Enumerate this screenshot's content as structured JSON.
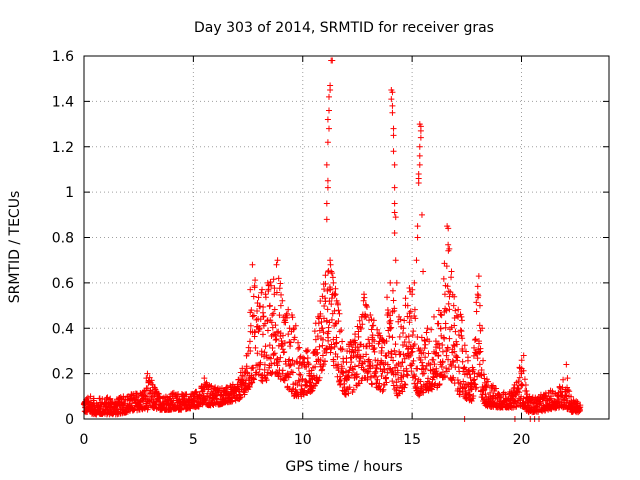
{
  "chart_data": {
    "type": "scatter",
    "title": "Day 303 of 2014, SRMTID for receiver gras",
    "xlabel": "GPS time / hours",
    "ylabel": "SRMTID / TECUs",
    "xlim": [
      0,
      24
    ],
    "ylim": [
      0,
      1.6
    ],
    "grid": true,
    "marker": "+",
    "color": "#ff0000",
    "xticks": [
      0,
      5,
      10,
      15,
      20
    ],
    "xtick_labels": [
      "0",
      "5",
      "10",
      "15",
      "20"
    ],
    "yticks": [
      0,
      0.2,
      0.4,
      0.6,
      0.8,
      1.0,
      1.2,
      1.4,
      1.6
    ],
    "ytick_labels": [
      "0",
      "0.2",
      "0.4",
      "0.6",
      "0.8",
      "1",
      "1.2",
      "1.4",
      "1.6"
    ],
    "envelope": {
      "x": [
        0,
        0.5,
        1,
        1.5,
        2,
        2.5,
        2.9,
        3,
        3.5,
        4,
        4.5,
        5,
        5.5,
        6,
        6.5,
        7,
        7.5,
        7.7,
        7.8,
        8.2,
        8.5,
        8.8,
        9.2,
        9.6,
        10.0,
        10.4,
        10.8,
        11.0,
        11.2,
        11.5,
        11.9,
        12.3,
        12.8,
        13.2,
        13.7,
        14.0,
        14.3,
        14.7,
        15.0,
        15.3,
        15.7,
        16.2,
        16.6,
        17.0,
        17.3,
        17.7,
        18.0,
        18.3,
        18.7,
        19.2,
        19.6,
        20.0,
        20.3,
        20.7,
        21.2,
        21.7,
        22.0,
        22.3,
        22.7
      ],
      "upper": [
        0.1,
        0.09,
        0.1,
        0.09,
        0.11,
        0.12,
        0.15,
        0.19,
        0.1,
        0.12,
        0.11,
        0.12,
        0.16,
        0.15,
        0.14,
        0.16,
        0.3,
        0.5,
        0.66,
        0.58,
        0.62,
        0.68,
        0.52,
        0.45,
        0.3,
        0.32,
        0.55,
        0.65,
        0.72,
        0.6,
        0.32,
        0.35,
        0.55,
        0.45,
        0.35,
        0.7,
        0.42,
        0.55,
        0.62,
        0.35,
        0.4,
        0.45,
        0.85,
        0.5,
        0.45,
        0.18,
        0.6,
        0.2,
        0.15,
        0.12,
        0.12,
        0.28,
        0.1,
        0.1,
        0.12,
        0.14,
        0.2,
        0.09,
        0.07
      ],
      "lower": [
        0.03,
        0.02,
        0.02,
        0.02,
        0.03,
        0.04,
        0.04,
        0.05,
        0.04,
        0.04,
        0.04,
        0.05,
        0.06,
        0.06,
        0.07,
        0.08,
        0.12,
        0.15,
        0.18,
        0.16,
        0.18,
        0.2,
        0.15,
        0.1,
        0.1,
        0.12,
        0.18,
        0.25,
        0.32,
        0.2,
        0.1,
        0.12,
        0.18,
        0.15,
        0.12,
        0.2,
        0.1,
        0.12,
        0.18,
        0.1,
        0.12,
        0.14,
        0.2,
        0.12,
        0.1,
        0.07,
        0.15,
        0.06,
        0.05,
        0.05,
        0.05,
        0.06,
        0.03,
        0.03,
        0.04,
        0.05,
        0.05,
        0.03,
        0.03
      ]
    },
    "points": [
      [
        0.05,
        0.05
      ],
      [
        0.15,
        0.08
      ],
      [
        0.3,
        0.1
      ],
      [
        0.5,
        0.06
      ],
      [
        0.7,
        0.09
      ],
      [
        1.0,
        0.07
      ],
      [
        1.2,
        0.09
      ],
      [
        1.5,
        0.06
      ],
      [
        1.8,
        0.1
      ],
      [
        2.1,
        0.08
      ],
      [
        2.4,
        0.11
      ],
      [
        2.7,
        0.09
      ],
      [
        2.85,
        0.18
      ],
      [
        2.9,
        0.2
      ],
      [
        2.95,
        0.16
      ],
      [
        3.2,
        0.07
      ],
      [
        3.6,
        0.09
      ],
      [
        4.0,
        0.08
      ],
      [
        4.3,
        0.11
      ],
      [
        4.6,
        0.09
      ],
      [
        5.0,
        0.1
      ],
      [
        5.4,
        0.12
      ],
      [
        5.5,
        0.18
      ],
      [
        5.6,
        0.16
      ],
      [
        6.0,
        0.13
      ],
      [
        6.4,
        0.12
      ],
      [
        6.8,
        0.14
      ],
      [
        7.2,
        0.13
      ],
      [
        7.6,
        0.3
      ],
      [
        7.6,
        0.47
      ],
      [
        7.65,
        0.48
      ],
      [
        7.6,
        0.57
      ],
      [
        7.7,
        0.68
      ],
      [
        7.8,
        0.58
      ],
      [
        8.0,
        0.4
      ],
      [
        8.2,
        0.45
      ],
      [
        8.3,
        0.55
      ],
      [
        8.4,
        0.6
      ],
      [
        8.5,
        0.5
      ],
      [
        8.7,
        0.55
      ],
      [
        8.8,
        0.68
      ],
      [
        8.85,
        0.7
      ],
      [
        8.9,
        0.62
      ],
      [
        9.0,
        0.5
      ],
      [
        9.2,
        0.45
      ],
      [
        9.4,
        0.4
      ],
      [
        9.6,
        0.35
      ],
      [
        10.0,
        0.25
      ],
      [
        10.3,
        0.2
      ],
      [
        10.6,
        0.35
      ],
      [
        10.7,
        0.45
      ],
      [
        10.8,
        0.52
      ],
      [
        10.9,
        0.4
      ],
      [
        11.0,
        0.3
      ],
      [
        11.1,
        0.88
      ],
      [
        11.1,
        0.95
      ],
      [
        11.15,
        1.02
      ],
      [
        11.15,
        1.05
      ],
      [
        11.1,
        1.12
      ],
      [
        11.15,
        1.22
      ],
      [
        11.2,
        1.28
      ],
      [
        11.15,
        1.32
      ],
      [
        11.2,
        1.36
      ],
      [
        11.2,
        1.42
      ],
      [
        11.25,
        1.45
      ],
      [
        11.25,
        1.47
      ],
      [
        11.3,
        1.58
      ],
      [
        11.35,
        1.58
      ],
      [
        11.25,
        0.7
      ],
      [
        11.3,
        0.65
      ],
      [
        11.4,
        0.6
      ],
      [
        11.5,
        0.55
      ],
      [
        12.0,
        0.25
      ],
      [
        12.4,
        0.3
      ],
      [
        12.7,
        0.45
      ],
      [
        12.8,
        0.55
      ],
      [
        12.9,
        0.5
      ],
      [
        13.2,
        0.35
      ],
      [
        13.6,
        0.3
      ],
      [
        14.0,
        0.6
      ],
      [
        14.05,
        1.45
      ],
      [
        14.1,
        1.44
      ],
      [
        14.05,
        1.41
      ],
      [
        14.1,
        1.38
      ],
      [
        14.1,
        1.35
      ],
      [
        14.15,
        1.28
      ],
      [
        14.15,
        1.25
      ],
      [
        14.15,
        1.18
      ],
      [
        14.2,
        1.12
      ],
      [
        14.2,
        1.02
      ],
      [
        14.2,
        0.95
      ],
      [
        14.2,
        0.91
      ],
      [
        14.25,
        0.89
      ],
      [
        14.2,
        0.82
      ],
      [
        14.25,
        0.7
      ],
      [
        14.3,
        0.6
      ],
      [
        14.4,
        0.45
      ],
      [
        14.6,
        0.4
      ],
      [
        14.8,
        0.5
      ],
      [
        15.0,
        0.55
      ],
      [
        15.1,
        0.6
      ],
      [
        15.2,
        0.7
      ],
      [
        15.25,
        0.8
      ],
      [
        15.25,
        0.85
      ],
      [
        15.3,
        1.04
      ],
      [
        15.3,
        1.06
      ],
      [
        15.3,
        1.08
      ],
      [
        15.35,
        1.12
      ],
      [
        15.35,
        1.16
      ],
      [
        15.35,
        1.2
      ],
      [
        15.4,
        1.24
      ],
      [
        15.4,
        1.27
      ],
      [
        15.4,
        1.29
      ],
      [
        15.35,
        1.3
      ],
      [
        15.45,
        0.9
      ],
      [
        15.5,
        0.65
      ],
      [
        15.7,
        0.4
      ],
      [
        16.0,
        0.45
      ],
      [
        16.3,
        0.4
      ],
      [
        16.5,
        0.55
      ],
      [
        16.6,
        0.85
      ],
      [
        16.65,
        0.84
      ],
      [
        16.7,
        0.75
      ],
      [
        16.8,
        0.65
      ],
      [
        16.9,
        0.5
      ],
      [
        17.1,
        0.45
      ],
      [
        17.3,
        0.3
      ],
      [
        17.4,
        0.0
      ],
      [
        17.5,
        0.15
      ],
      [
        17.7,
        0.13
      ],
      [
        18.0,
        0.55
      ],
      [
        18.05,
        0.63
      ],
      [
        18.1,
        0.5
      ],
      [
        18.2,
        0.4
      ],
      [
        18.4,
        0.15
      ],
      [
        18.7,
        0.1
      ],
      [
        19.0,
        0.08
      ],
      [
        19.4,
        0.09
      ],
      [
        19.7,
        0.0
      ],
      [
        19.8,
        0.07
      ],
      [
        20.0,
        0.2
      ],
      [
        20.1,
        0.28
      ],
      [
        20.2,
        0.15
      ],
      [
        20.4,
        0.0
      ],
      [
        20.6,
        0.0
      ],
      [
        20.8,
        0.0
      ],
      [
        21.0,
        0.06
      ],
      [
        21.3,
        0.07
      ],
      [
        21.7,
        0.08
      ],
      [
        22.0,
        0.12
      ],
      [
        22.05,
        0.24
      ],
      [
        22.1,
        0.18
      ],
      [
        22.3,
        0.06
      ],
      [
        22.6,
        0.05
      ]
    ]
  }
}
